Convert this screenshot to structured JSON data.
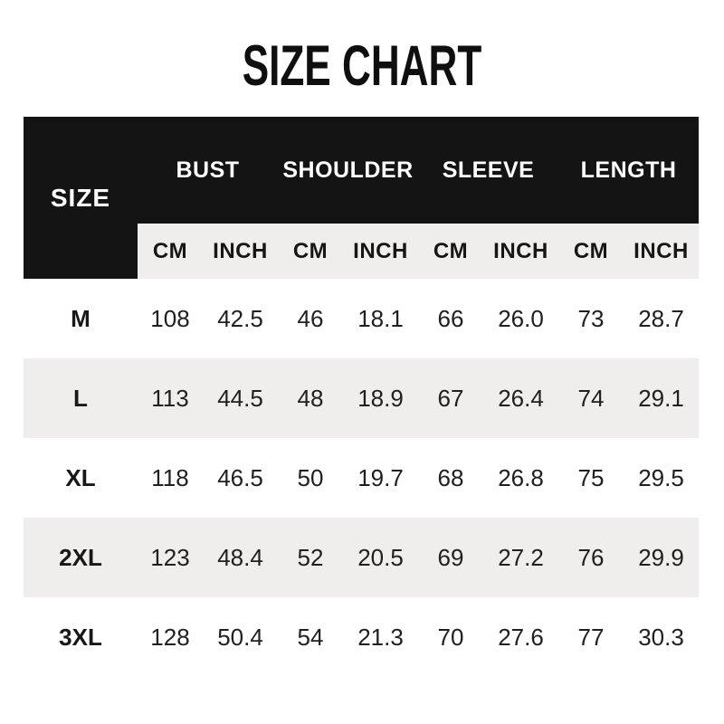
{
  "title": "SIZE CHART",
  "colors": {
    "page_bg": "#ffffff",
    "header_bg": "#141414",
    "header_text": "#ffffff",
    "stripe_bg": "#efeeec",
    "text": "#202020"
  },
  "table": {
    "size_header": "SIZE",
    "groups": [
      "BUST",
      "SHOULDER",
      "SLEEVE",
      "LENGTH"
    ],
    "units": [
      "CM",
      "INCH",
      "CM",
      "INCH",
      "CM",
      "INCH",
      "CM",
      "INCH"
    ],
    "rows": [
      {
        "size": "M",
        "values": [
          "108",
          "42.5",
          "46",
          "18.1",
          "66",
          "26.0",
          "73",
          "28.7"
        ]
      },
      {
        "size": "L",
        "values": [
          "113",
          "44.5",
          "48",
          "18.9",
          "67",
          "26.4",
          "74",
          "29.1"
        ]
      },
      {
        "size": "XL",
        "values": [
          "118",
          "46.5",
          "50",
          "19.7",
          "68",
          "26.8",
          "75",
          "29.5"
        ]
      },
      {
        "size": "2XL",
        "values": [
          "123",
          "48.4",
          "52",
          "20.5",
          "69",
          "27.2",
          "76",
          "29.9"
        ]
      },
      {
        "size": "3XL",
        "values": [
          "128",
          "50.4",
          "54",
          "21.3",
          "70",
          "27.6",
          "77",
          "30.3"
        ]
      }
    ]
  },
  "chart_data": {
    "type": "table",
    "title": "SIZE CHART",
    "columns": [
      "SIZE",
      "BUST CM",
      "BUST INCH",
      "SHOULDER CM",
      "SHOULDER INCH",
      "SLEEVE CM",
      "SLEEVE INCH",
      "LENGTH CM",
      "LENGTH INCH"
    ],
    "rows": [
      [
        "M",
        108,
        42.5,
        46,
        18.1,
        66,
        26.0,
        73,
        28.7
      ],
      [
        "L",
        113,
        44.5,
        48,
        18.9,
        67,
        26.4,
        74,
        29.1
      ],
      [
        "XL",
        118,
        46.5,
        50,
        19.7,
        68,
        26.8,
        75,
        29.5
      ],
      [
        "2XL",
        123,
        48.4,
        52,
        20.5,
        69,
        27.2,
        76,
        29.9
      ],
      [
        "3XL",
        128,
        50.4,
        54,
        21.3,
        70,
        27.6,
        77,
        30.3
      ]
    ]
  }
}
